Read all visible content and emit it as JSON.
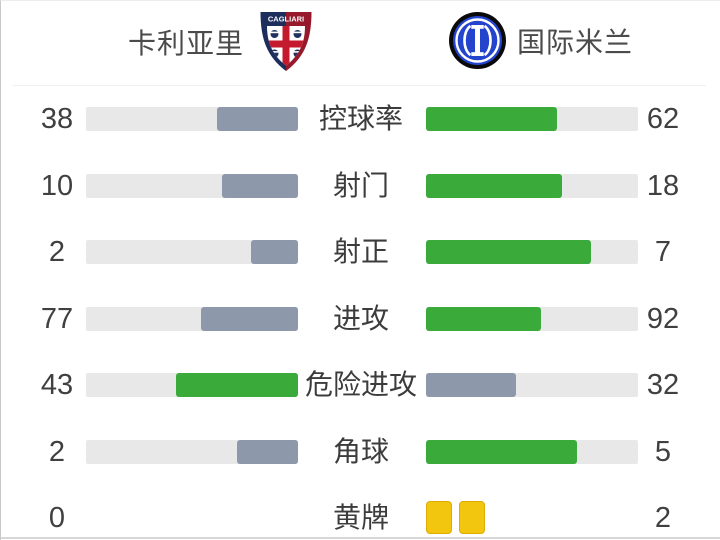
{
  "header": {
    "home": {
      "name": "卡利亚里",
      "crest_banner": "CAGLIARI"
    },
    "away": {
      "name": "国际米兰"
    }
  },
  "colors": {
    "win_fill": "#3aaa3a",
    "lose_fill": "#8d99ab",
    "track": "#e8e8e8",
    "yellow_card": "#f2c50f",
    "value_text": "#404040",
    "crest_navy": "#1d2d5c",
    "crest_red": "#97192c",
    "cross_red": "#c51a2e",
    "inter_blue": "#2444cd",
    "inter_black": "#0a0a0a"
  },
  "chart_data": {
    "type": "bar",
    "orientation": "horizontal-paired",
    "title": "",
    "teams": [
      "卡利亚里",
      "国际米兰"
    ],
    "categories": [
      "控球率",
      "射门",
      "射正",
      "进攻",
      "危险进攻",
      "角球",
      "黄牌"
    ],
    "series": [
      {
        "name": "卡利亚里",
        "values": [
          38,
          10,
          2,
          77,
          43,
          2,
          0
        ]
      },
      {
        "name": "国际米兰",
        "values": [
          62,
          18,
          7,
          92,
          32,
          5,
          2
        ]
      }
    ],
    "row_types": [
      "bar",
      "bar",
      "bar",
      "bar",
      "bar",
      "bar",
      "cards"
    ],
    "legend_position": "none",
    "grid": false,
    "notes": "Paired horizontal bars; the side with the higher value is filled green, the lower side slate-gray. Bars fill toward the center. 黄牌 row shows two yellow card icons for the away team instead of bars."
  }
}
